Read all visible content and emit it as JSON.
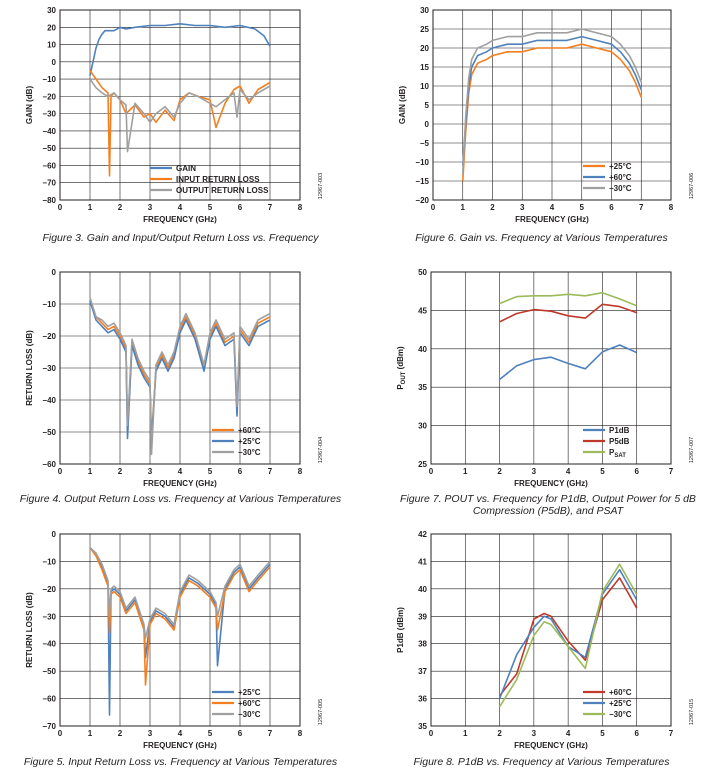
{
  "captions": [
    "Figure 3. Gain and Input/Output Return Loss vs. Frequency",
    "Figure 6. Gain vs. Frequency at Various Temperatures",
    "Figure 4. Output Return Loss vs. Frequency at Various Temperatures",
    "Figure 7. POUT vs. Frequency for P1dB, Output Power for 5 dB Compression (P5dB), and PSAT",
    "Figure 8. P1dB vs. Frequency at Various Temperatures",
    "Figure 5. Input Return Loss vs. Frequency at Various Temperatures"
  ],
  "colors": {
    "blue": "#4f81bd",
    "orange": "#f47f20",
    "gray": "#a0a0a0",
    "red": "#c0392b",
    "green": "#9bbb59",
    "grid": "#231f20"
  },
  "chart_data": [
    {
      "id": "fig3",
      "type": "line",
      "xlabel": "FREQUENCY (GHz)",
      "ylabel": "GAIN (dB)",
      "xlim": [
        0,
        8
      ],
      "ylim": [
        -80,
        30
      ],
      "xticks": [
        0,
        1,
        2,
        3,
        4,
        5,
        6,
        7,
        8
      ],
      "yticks": [
        30,
        20,
        10,
        0,
        -10,
        -20,
        -30,
        -40,
        -50,
        -60,
        -70,
        -80
      ],
      "grid": true,
      "legend_position": "bottom-center",
      "code": "12967-003",
      "series": [
        {
          "name": "GAIN",
          "color": "blue",
          "x": [
            1,
            1.1,
            1.2,
            1.3,
            1.4,
            1.5,
            1.6,
            1.8,
            2,
            2.2,
            2.5,
            3,
            3.5,
            4,
            4.5,
            5,
            5.5,
            6,
            6.5,
            6.8,
            7
          ],
          "y": [
            -8,
            0,
            8,
            13,
            16,
            18,
            18,
            18,
            20,
            19,
            20,
            21,
            21,
            22,
            21,
            21,
            20,
            21,
            19,
            15,
            9
          ]
        },
        {
          "name": "INPUT RETURN LOSS",
          "color": "orange",
          "x": [
            1,
            1.2,
            1.4,
            1.6,
            1.65,
            1.7,
            1.8,
            2,
            2.2,
            2.5,
            2.8,
            3,
            3.2,
            3.5,
            3.8,
            4,
            4.3,
            4.6,
            5,
            5.2,
            5.5,
            5.8,
            6,
            6.3,
            6.6,
            7
          ],
          "y": [
            -5,
            -10,
            -15,
            -18,
            -66,
            -20,
            -18,
            -22,
            -30,
            -25,
            -32,
            -30,
            -35,
            -28,
            -34,
            -22,
            -18,
            -20,
            -22,
            -38,
            -24,
            -16,
            -14,
            -24,
            -16,
            -12
          ]
        },
        {
          "name": "OUTPUT RETURN LOSS",
          "color": "gray",
          "x": [
            1,
            1.2,
            1.4,
            1.6,
            1.8,
            2,
            2.2,
            2.25,
            2.5,
            2.8,
            3,
            3.2,
            3.5,
            3.8,
            4,
            4.3,
            4.6,
            5,
            5.2,
            5.5,
            5.8,
            5.9,
            6,
            6.3,
            6.6,
            7
          ],
          "y": [
            -10,
            -15,
            -18,
            -20,
            -18,
            -22,
            -25,
            -52,
            -24,
            -30,
            -35,
            -30,
            -26,
            -32,
            -24,
            -18,
            -20,
            -24,
            -26,
            -22,
            -18,
            -32,
            -16,
            -22,
            -18,
            -14
          ]
        }
      ]
    },
    {
      "id": "fig6",
      "type": "line",
      "xlabel": "FREQUENCY (GHz)",
      "ylabel": "GAIN (dB)",
      "xlim": [
        0,
        8
      ],
      "ylim": [
        -20,
        30
      ],
      "xticks": [
        0,
        1,
        2,
        3,
        4,
        5,
        6,
        7,
        8
      ],
      "yticks": [
        30,
        25,
        20,
        15,
        10,
        5,
        0,
        -5,
        -10,
        -15,
        -20
      ],
      "grid": true,
      "legend_position": "bottom-right",
      "code": "12967-006",
      "series": [
        {
          "name": "+25°C",
          "color": "orange",
          "x": [
            1,
            1.1,
            1.2,
            1.3,
            1.5,
            1.8,
            2,
            2.5,
            3,
            3.5,
            4,
            4.5,
            5,
            5.5,
            6,
            6.3,
            6.6,
            6.8,
            7
          ],
          "y": [
            -15,
            -2,
            8,
            13,
            16,
            17,
            18,
            19,
            19,
            20,
            20,
            20,
            21,
            20,
            19,
            17,
            14,
            11,
            7
          ]
        },
        {
          "name": "+60°C",
          "color": "blue",
          "x": [
            1,
            1.1,
            1.2,
            1.3,
            1.5,
            1.8,
            2,
            2.5,
            3,
            3.5,
            4,
            4.5,
            5,
            5.5,
            6,
            6.3,
            6.6,
            6.8,
            7
          ],
          "y": [
            -11,
            0,
            10,
            15,
            18,
            19,
            20,
            21,
            21,
            22,
            22,
            22,
            23,
            22,
            21,
            19,
            16,
            13,
            9
          ]
        },
        {
          "name": "−30°C",
          "color": "gray",
          "x": [
            1,
            1.1,
            1.2,
            1.3,
            1.5,
            1.8,
            2,
            2.5,
            3,
            3.5,
            4,
            4.5,
            5,
            5.5,
            6,
            6.3,
            6.6,
            6.8,
            7
          ],
          "y": [
            -13,
            2,
            12,
            17,
            20,
            21,
            22,
            23,
            23,
            24,
            24,
            24,
            25,
            24,
            23,
            21,
            18,
            15,
            11
          ]
        }
      ]
    },
    {
      "id": "fig4",
      "type": "line",
      "xlabel": "FREQUENCY (GHz)",
      "ylabel": "RETURN LOSS (dB)",
      "xlim": [
        0,
        8
      ],
      "ylim": [
        -60,
        0
      ],
      "xticks": [
        0,
        1,
        2,
        3,
        4,
        5,
        6,
        7,
        8
      ],
      "yticks": [
        0,
        -10,
        -20,
        -30,
        -40,
        -50,
        -60
      ],
      "grid": true,
      "legend_position": "bottom-right",
      "code": "12967-004",
      "series": [
        {
          "name": "+60°C",
          "color": "orange",
          "x": [
            1,
            1.2,
            1.4,
            1.6,
            1.8,
            2,
            2.2,
            2.25,
            2.4,
            2.6,
            2.8,
            3,
            3.05,
            3.2,
            3.4,
            3.6,
            3.8,
            4,
            4.2,
            4.5,
            4.8,
            5,
            5.2,
            5.5,
            5.8,
            5.9,
            6,
            6.3,
            6.6,
            7
          ],
          "y": [
            -9,
            -14,
            -16,
            -18,
            -17,
            -20,
            -24,
            -50,
            -22,
            -28,
            -32,
            -35,
            -52,
            -30,
            -26,
            -30,
            -26,
            -18,
            -14,
            -20,
            -30,
            -20,
            -16,
            -22,
            -20,
            -44,
            -18,
            -22,
            -16,
            -14
          ]
        },
        {
          "name": "+25°C",
          "color": "blue",
          "x": [
            1,
            1.2,
            1.4,
            1.6,
            1.8,
            2,
            2.2,
            2.25,
            2.4,
            2.6,
            2.8,
            3,
            3.05,
            3.2,
            3.4,
            3.6,
            3.8,
            4,
            4.2,
            4.5,
            4.8,
            5,
            5.2,
            5.5,
            5.8,
            5.9,
            6,
            6.3,
            6.6,
            7
          ],
          "y": [
            -9,
            -15,
            -17,
            -19,
            -18,
            -21,
            -25,
            -52,
            -23,
            -29,
            -33,
            -36,
            -53,
            -31,
            -27,
            -31,
            -27,
            -19,
            -15,
            -21,
            -31,
            -21,
            -17,
            -23,
            -21,
            -45,
            -19,
            -23,
            -17,
            -15
          ]
        },
        {
          "name": "−30°C",
          "color": "gray",
          "x": [
            1,
            1.2,
            1.4,
            1.6,
            1.8,
            2,
            2.2,
            2.25,
            2.4,
            2.6,
            2.8,
            3,
            3.05,
            3.2,
            3.4,
            3.6,
            3.8,
            4,
            4.2,
            4.5,
            4.8,
            5,
            5.2,
            5.5,
            5.8,
            5.9,
            6,
            6.3,
            6.6,
            7
          ],
          "y": [
            -8,
            -14,
            -15,
            -17,
            -16,
            -19,
            -23,
            -48,
            -21,
            -27,
            -31,
            -34,
            -57,
            -29,
            -25,
            -29,
            -25,
            -17,
            -13,
            -19,
            -29,
            -19,
            -15,
            -21,
            -19,
            -42,
            -17,
            -21,
            -15,
            -13
          ]
        }
      ]
    },
    {
      "id": "fig7",
      "type": "line",
      "xlabel": "FREQUENCY (GHz)",
      "ylabel": "POUT (dBm)",
      "xlim": [
        0,
        7
      ],
      "ylim": [
        25,
        50
      ],
      "xticks": [
        0,
        1,
        2,
        3,
        4,
        5,
        6,
        7
      ],
      "yticks": [
        50,
        45,
        40,
        35,
        30,
        25
      ],
      "grid": true,
      "legend_position": "bottom-right",
      "code": "12967-007",
      "series": [
        {
          "name": "P1dB",
          "color": "blue",
          "x": [
            2,
            2.5,
            3,
            3.5,
            4,
            4.5,
            5,
            5.5,
            6
          ],
          "y": [
            36.0,
            37.8,
            38.6,
            38.9,
            38.1,
            37.4,
            39.6,
            40.5,
            39.5
          ]
        },
        {
          "name": "P5dB",
          "color": "red",
          "x": [
            2,
            2.5,
            3,
            3.5,
            4,
            4.5,
            5,
            5.5,
            6
          ],
          "y": [
            43.5,
            44.6,
            45.1,
            44.9,
            44.3,
            44.0,
            45.8,
            45.5,
            44.7
          ]
        },
        {
          "name": "PSAT",
          "color": "green",
          "x": [
            2,
            2.5,
            3,
            3.5,
            4,
            4.5,
            5,
            5.5,
            6
          ],
          "y": [
            45.9,
            46.8,
            46.9,
            46.9,
            47.1,
            46.9,
            47.3,
            46.5,
            45.6
          ]
        }
      ]
    },
    {
      "id": "fig8",
      "type": "line",
      "xlabel": "FREQUENCY (GHz)",
      "ylabel": "P1dB (dBm)",
      "xlim": [
        0,
        7
      ],
      "ylim": [
        35,
        42
      ],
      "xticks": [
        0,
        1,
        2,
        3,
        4,
        5,
        6,
        7
      ],
      "yticks": [
        42,
        41,
        40,
        39,
        38,
        37,
        36,
        35
      ],
      "grid": true,
      "legend_position": "bottom-right",
      "code": "12967-015",
      "series": [
        {
          "name": "+60°C",
          "color": "red",
          "x": [
            2,
            2.5,
            3,
            3.3,
            3.5,
            4,
            4.5,
            5,
            5.5,
            6
          ],
          "y": [
            36.1,
            36.9,
            38.9,
            39.1,
            39.0,
            38.1,
            37.4,
            39.6,
            40.4,
            39.3
          ]
        },
        {
          "name": "+25°C",
          "color": "blue",
          "x": [
            2,
            2.5,
            3,
            3.3,
            3.5,
            4,
            4.5,
            5,
            5.5,
            6
          ],
          "y": [
            36.0,
            37.6,
            38.6,
            39.0,
            38.9,
            37.9,
            37.5,
            39.8,
            40.7,
            39.6
          ]
        },
        {
          "name": "−30°C",
          "color": "green",
          "x": [
            2,
            2.5,
            3,
            3.3,
            3.5,
            4,
            4.5,
            5,
            5.5,
            6
          ],
          "y": [
            35.7,
            36.7,
            38.3,
            38.8,
            38.7,
            37.9,
            37.1,
            39.9,
            40.9,
            39.8
          ]
        }
      ]
    },
    {
      "id": "fig5",
      "type": "line",
      "xlabel": "FREQUENCY (GHz)",
      "ylabel": "RETURN LOSS (dB)",
      "xlim": [
        0,
        8
      ],
      "ylim": [
        -70,
        0
      ],
      "xticks": [
        0,
        1,
        2,
        3,
        4,
        5,
        6,
        7,
        8
      ],
      "yticks": [
        0,
        -10,
        -20,
        -30,
        -40,
        -50,
        -60,
        -70
      ],
      "grid": true,
      "legend_position": "bottom-right",
      "code": "12967-005",
      "series": [
        {
          "name": "+25°C",
          "color": "blue",
          "x": [
            1,
            1.2,
            1.4,
            1.6,
            1.65,
            1.7,
            1.8,
            2,
            2.2,
            2.5,
            2.8,
            2.85,
            3,
            3.2,
            3.5,
            3.8,
            4,
            4.3,
            4.6,
            5,
            5.2,
            5.25,
            5.5,
            5.8,
            6,
            6.3,
            6.6,
            7
          ],
          "y": [
            -5,
            -7,
            -12,
            -18,
            -66,
            -21,
            -20,
            -22,
            -28,
            -24,
            -34,
            -45,
            -32,
            -28,
            -30,
            -34,
            -22,
            -16,
            -18,
            -22,
            -26,
            -48,
            -20,
            -14,
            -12,
            -20,
            -16,
            -11
          ]
        },
        {
          "name": "+60°C",
          "color": "orange",
          "x": [
            1,
            1.2,
            1.4,
            1.6,
            1.65,
            1.7,
            1.8,
            2,
            2.2,
            2.5,
            2.8,
            2.85,
            3,
            3.2,
            3.5,
            3.8,
            4,
            4.3,
            4.6,
            5,
            5.2,
            5.25,
            5.5,
            5.8,
            6,
            6.3,
            6.6,
            7
          ],
          "y": [
            -5,
            -8,
            -13,
            -19,
            -36,
            -22,
            -21,
            -23,
            -29,
            -25,
            -35,
            -55,
            -33,
            -29,
            -31,
            -35,
            -23,
            -17,
            -19,
            -23,
            -27,
            -35,
            -21,
            -15,
            -13,
            -21,
            -17,
            -12
          ]
        },
        {
          "name": "−30°C",
          "color": "gray",
          "x": [
            1,
            1.2,
            1.4,
            1.6,
            1.65,
            1.7,
            1.8,
            2,
            2.2,
            2.5,
            2.8,
            2.85,
            3,
            3.2,
            3.5,
            3.8,
            4,
            4.3,
            4.6,
            5,
            5.2,
            5.25,
            5.5,
            5.8,
            6,
            6.3,
            6.6,
            7
          ],
          "y": [
            -5,
            -7,
            -11,
            -17,
            -30,
            -20,
            -19,
            -21,
            -27,
            -23,
            -33,
            -38,
            -31,
            -27,
            -29,
            -33,
            -21,
            -15,
            -17,
            -21,
            -25,
            -30,
            -19,
            -13,
            -11,
            -19,
            -15,
            -10
          ]
        }
      ]
    }
  ]
}
